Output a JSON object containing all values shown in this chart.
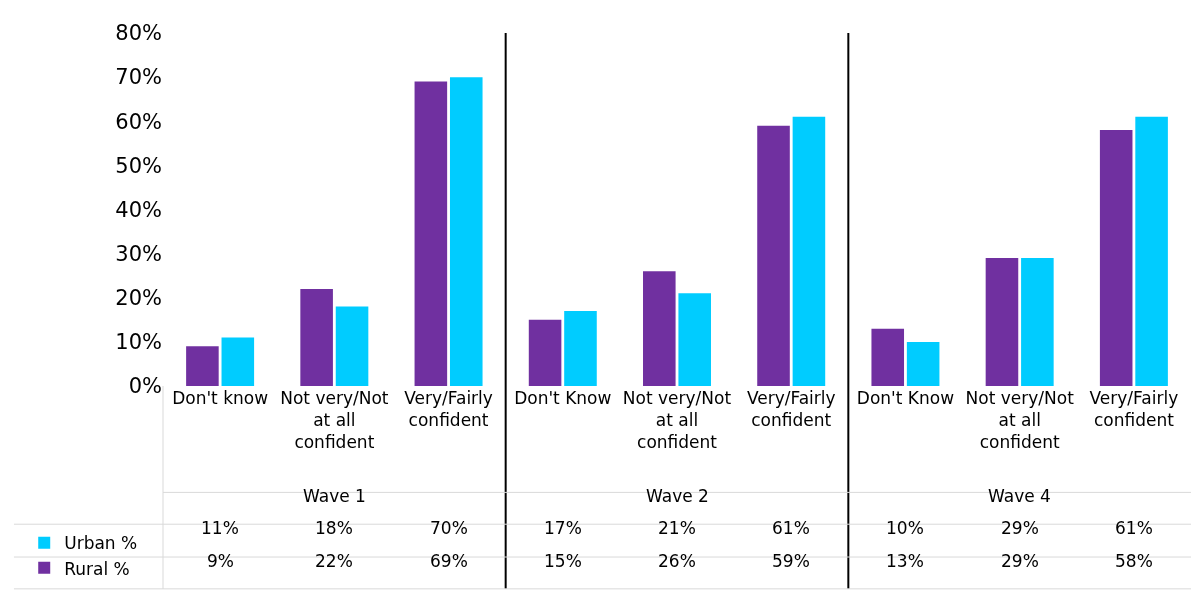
{
  "chart_data": {
    "type": "bar",
    "categories": [
      "Don't know",
      "Not very/Not at all confident",
      "Very/Fairly confident",
      "Don't Know",
      "Not very/Not at all confident",
      "Very/Fairly confident",
      "Don't Know",
      "Not very/Not at all confident",
      "Very/Fairly confident"
    ],
    "series": [
      {
        "name": "Rural %",
        "color": "#7030a0",
        "values": [
          9,
          22,
          69,
          15,
          26,
          59,
          13,
          29,
          58
        ],
        "value_labels": [
          "9%",
          "22%",
          "69%",
          "15%",
          "26%",
          "59%",
          "13%",
          "29%",
          "58%"
        ]
      },
      {
        "name": "Urban %",
        "color": "#00ccff",
        "values": [
          11,
          18,
          70,
          17,
          21,
          61,
          10,
          29,
          61
        ],
        "value_labels": [
          "11%",
          "18%",
          "70%",
          "17%",
          "21%",
          "61%",
          "10%",
          "29%",
          "61%"
        ]
      }
    ],
    "ylim": [
      0,
      80
    ],
    "yticks": [
      {
        "value": 0,
        "label": "0%"
      },
      {
        "value": 10,
        "label": "10%"
      },
      {
        "value": 20,
        "label": "20%"
      },
      {
        "value": 30,
        "label": "30%"
      },
      {
        "value": 40,
        "label": "40%"
      },
      {
        "value": 50,
        "label": "50%"
      },
      {
        "value": 60,
        "label": "60%"
      },
      {
        "value": 70,
        "label": "70%"
      },
      {
        "value": 80,
        "label": "80%"
      }
    ],
    "annotations": [
      "Wave 1",
      "Wave 2",
      "Wave 4"
    ],
    "grid": false,
    "legend": "bottom left"
  }
}
